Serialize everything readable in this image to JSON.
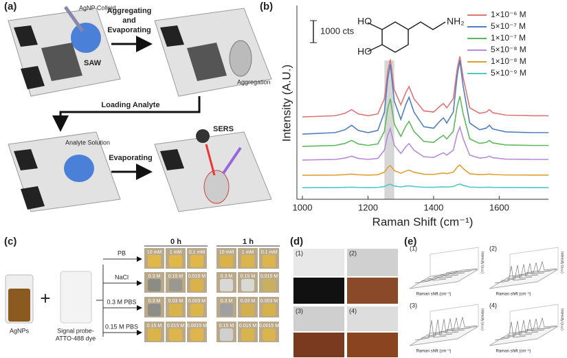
{
  "panel_a": {
    "label": "(a)",
    "colloid": "AgNP Colloid",
    "step1": [
      "Aggregating",
      "and",
      "Evaporating"
    ],
    "saw": "SAW",
    "aggregation": "Aggregation",
    "step2": "Loading Analyte",
    "analyte": "Analyte Solution",
    "step3": "Evaporating",
    "sers": "SERS"
  },
  "panel_b": {
    "label": "(b)"
  },
  "chart_data": {
    "type": "line",
    "x_label": "Raman Shift (cm⁻¹)",
    "y_label": "Intensity (A.U.)",
    "molecule": {
      "ho_top": "HO",
      "ho_bottom": "HO",
      "amine": "NH₂"
    },
    "scale_bar": {
      "value": 1000,
      "label": "1000 cts"
    },
    "highlight": [
      1250,
      1280
    ],
    "xlim": [
      1000,
      1750
    ],
    "xticks": [
      1000,
      1200,
      1400,
      1600
    ],
    "ylim": [
      0,
      8800
    ],
    "legend": "upper right",
    "x": [
      1000,
      1050,
      1100,
      1130,
      1150,
      1170,
      1200,
      1230,
      1250,
      1260,
      1268,
      1280,
      1300,
      1315,
      1325,
      1340,
      1370,
      1400,
      1420,
      1430,
      1440,
      1460,
      1472,
      1480,
      1490,
      1510,
      1540,
      1560,
      1570,
      1580,
      1620,
      1700,
      1750
    ],
    "series": [
      {
        "name": "1×10⁻⁶ M",
        "color": "#e07474",
        "values": [
          3740,
          3768,
          3795,
          3905,
          4070,
          3878,
          3795,
          3878,
          4565,
          5803,
          6353,
          4978,
          4290,
          4840,
          5115,
          4565,
          4015,
          3960,
          4235,
          4345,
          4153,
          4565,
          5940,
          6490,
          5528,
          4153,
          3905,
          3960,
          4070,
          3933,
          3823,
          3795,
          3795
        ]
      },
      {
        "name": "5×10⁻⁷ M",
        "color": "#4f7fc0",
        "values": [
          2960,
          2993,
          3027,
          3160,
          3361,
          3127,
          3027,
          3127,
          3962,
          5465,
          6133,
          4463,
          3628,
          4296,
          4630,
          3962,
          3294,
          3227,
          3561,
          3695,
          3461,
          3962,
          5632,
          6300,
          5131,
          3461,
          3160,
          3227,
          3361,
          3194,
          3060,
          3027,
          3027
        ]
      },
      {
        "name": "1×10⁻⁷ M",
        "color": "#5cb85c",
        "values": [
          2400,
          2423,
          2446,
          2537,
          2674,
          2514,
          2446,
          2514,
          3084,
          4110,
          4566,
          3426,
          2856,
          3312,
          3540,
          3084,
          2628,
          2582,
          2810,
          2902,
          2742,
          3084,
          4224,
          4680,
          3882,
          2742,
          2537,
          2582,
          2674,
          2560,
          2468,
          2446,
          2446
        ]
      },
      {
        "name": "5×10⁻⁸ M",
        "color": "#b58ad8",
        "values": [
          1780,
          1795,
          1810,
          1870,
          1960,
          1855,
          1810,
          1855,
          2230,
          2905,
          3205,
          2455,
          2080,
          2380,
          2530,
          2230,
          1930,
          1900,
          2050,
          2110,
          2005,
          2230,
          2980,
          3280,
          2755,
          2005,
          1870,
          1900,
          1960,
          1885,
          1825,
          1810,
          1810
        ]
      },
      {
        "name": "1×10⁻⁸ M",
        "color": "#e0a030",
        "values": [
          1090,
          1095,
          1099,
          1118,
          1146,
          1114,
          1099,
          1114,
          1231,
          1443,
          1537,
          1302,
          1184,
          1278,
          1325,
          1231,
          1137,
          1128,
          1175,
          1193,
          1161,
          1231,
          1466,
          1560,
          1396,
          1161,
          1118,
          1128,
          1146,
          1123,
          1104,
          1099,
          1099
        ]
      },
      {
        "name": "5×10⁻⁹ M",
        "color": "#4fc8c8",
        "values": [
          530,
          532,
          533,
          540,
          549,
          538,
          533,
          538,
          578,
          650,
          682,
          602,
          562,
          594,
          610,
          578,
          546,
          543,
          559,
          565,
          554,
          578,
          658,
          690,
          634,
          554,
          540,
          543,
          549,
          541,
          535,
          533,
          533
        ]
      }
    ]
  },
  "panel_c": {
    "label": "(c)",
    "agnps": "AgNPs",
    "plus": "+",
    "probe": [
      "Signal probe-",
      "ATTO-488 dye"
    ],
    "times": [
      "0 h",
      "1 h"
    ],
    "rows": [
      {
        "name": "PB",
        "conc": [
          "10 mM",
          "1 mM",
          "0.1 mM"
        ]
      },
      {
        "name": "NaCl",
        "conc": [
          "0.3 M",
          "0.15 M",
          "0.015 M"
        ]
      },
      {
        "name": "0.3 M PBS",
        "conc": [
          "0.3 M",
          "0.03 M",
          "0.003 M"
        ]
      },
      {
        "name": "0.15 M PBS",
        "conc": [
          "0.15 M",
          "0.015 M",
          "0.0015 M"
        ]
      }
    ]
  },
  "panel_d": {
    "label": "(d)",
    "images": [
      "(1)",
      "(2)",
      "(3)",
      "(4)"
    ]
  },
  "panel_e": {
    "label": "(e)",
    "plots": [
      "(1)",
      "(2)",
      "(3)",
      "(4)"
    ],
    "x_label": "Raman shift (cm⁻¹)",
    "y_label": "Intensity (a.u.)"
  }
}
